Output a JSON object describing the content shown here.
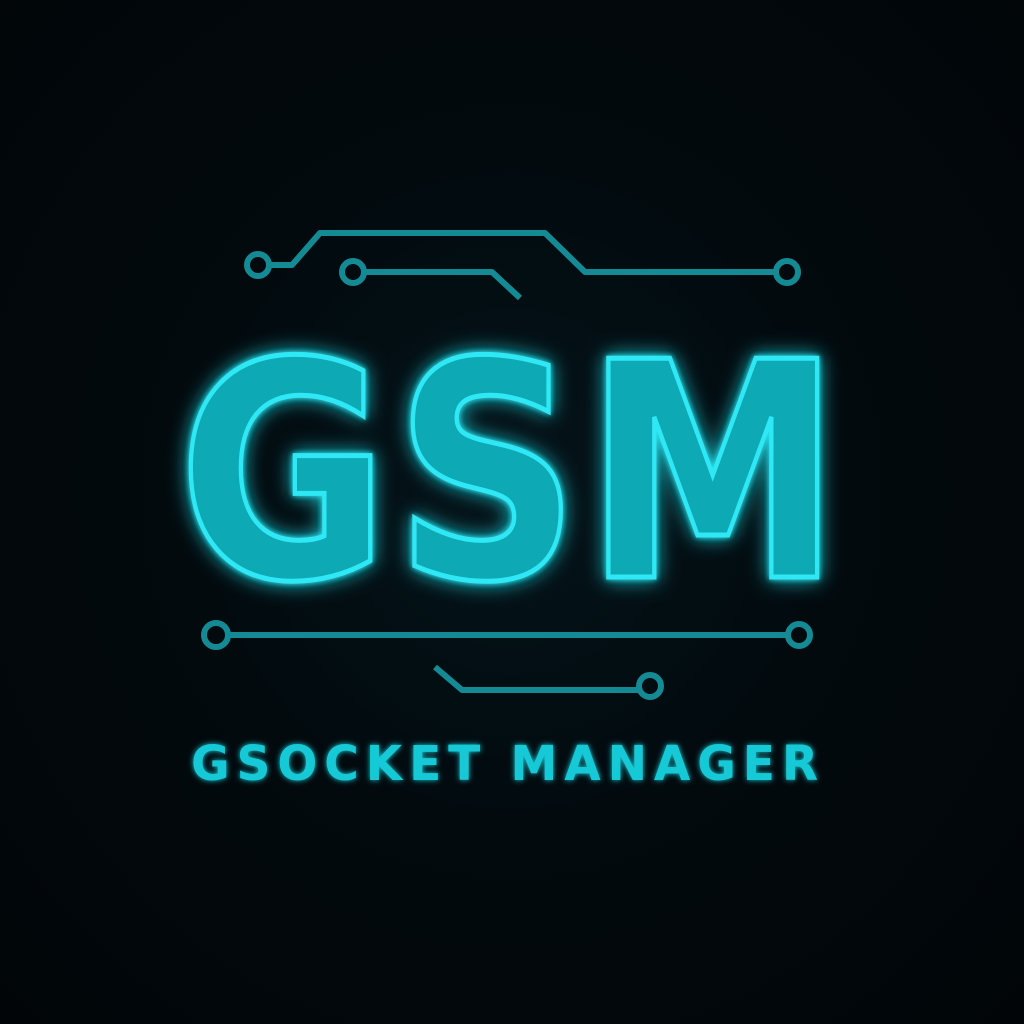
{
  "logo": {
    "wordmark": "GSM",
    "tagline": "GSOCKET MANAGER"
  },
  "colors": {
    "background": "#010609",
    "accent": "#18c9d6",
    "accent_glow": "#0fe3f0",
    "letter_fill": "#0fa9b4",
    "trace": "#138a94"
  },
  "icons": [
    "circuit-trace-icon"
  ]
}
